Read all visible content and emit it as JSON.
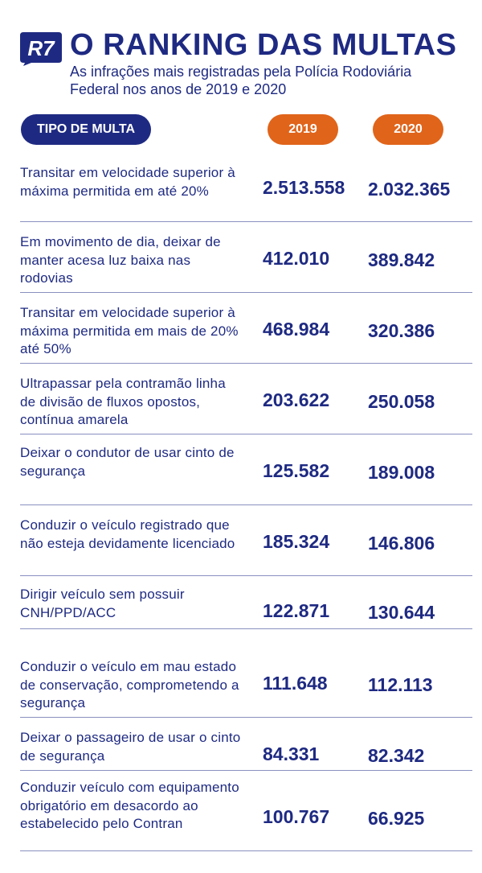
{
  "header": {
    "logo_text": "R7",
    "title": "O RANKING DAS MULTAS",
    "subtitle": "As infrações mais registradas pela Polícia Rodoviária Federal nos anos de 2019 e 2020"
  },
  "columns": {
    "type": "TIPO DE MULTA",
    "year1": "2019",
    "year2": "2020"
  },
  "colors": {
    "navy": "#1e2a82",
    "orange": "#e0641a"
  },
  "rows": [
    {
      "desc": "Transitar em velocidade superior à máxima permitida em até 20%",
      "v2019": "2.513.558",
      "v2020": "2.032.365"
    },
    {
      "desc": "Em movimento de dia, deixar de manter acesa luz baixa nas rodovias",
      "v2019": "412.010",
      "v2020": "389.842"
    },
    {
      "desc": "Transitar em velocidade superior à máxima permitida em mais de 20% até 50%",
      "v2019": "468.984",
      "v2020": "320.386"
    },
    {
      "desc": "Ultrapassar pela contramão linha de divisão de fluxos opostos, contínua amarela",
      "v2019": "203.622",
      "v2020": "250.058"
    },
    {
      "desc": "Deixar o condutor de usar cinto de segurança",
      "v2019": "125.582",
      "v2020": "189.008"
    },
    {
      "desc": "Conduzir o veículo registrado que não esteja devidamente licenciado",
      "v2019": "185.324",
      "v2020": "146.806"
    },
    {
      "desc": "Dirigir veículo sem possuir CNH/PPD/ACC",
      "v2019": "122.871",
      "v2020": "130.644"
    },
    {
      "desc": "Conduzir o veículo em mau estado de conservação, comprometendo a segurança",
      "v2019": "111.648",
      "v2020": "112.113"
    },
    {
      "desc": "Deixar o passageiro de usar o cinto de segurança",
      "v2019": "84.331",
      "v2020": "82.342"
    },
    {
      "desc": "Conduzir veículo com equipamento obrigatório em desacordo ao estabelecido pelo Contran",
      "v2019": "100.767",
      "v2020": "66.925"
    }
  ]
}
